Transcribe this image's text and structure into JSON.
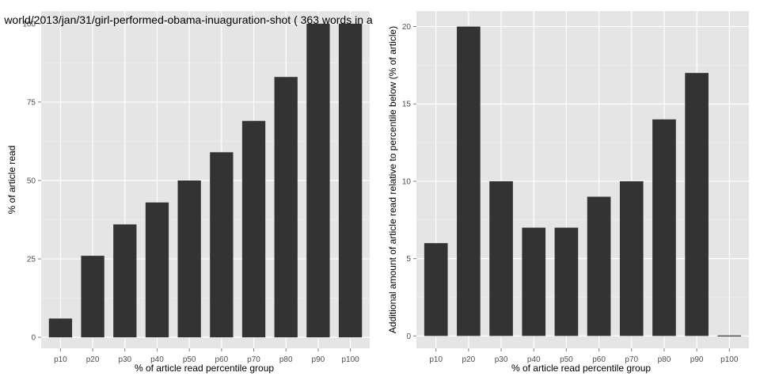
{
  "chart_data": [
    {
      "type": "bar",
      "title": "world/2013/jan/31/girl-performed-obama-inuaguration-shot ( 363 words in a",
      "xlabel": "% of article read percentile group",
      "ylabel": "% of article read",
      "categories": [
        "p10",
        "p20",
        "p30",
        "p40",
        "p50",
        "p60",
        "p70",
        "p80",
        "p90",
        "p100"
      ],
      "values": [
        6,
        26,
        36,
        43,
        50,
        59,
        69,
        83,
        100,
        100
      ],
      "ylim": [
        -3.5,
        104
      ],
      "yticks": [
        0,
        25,
        50,
        75,
        100
      ],
      "ytick_labels": [
        "0",
        "25",
        "50",
        "75",
        "100"
      ],
      "grid": true,
      "panel_color": "#e5e5e5",
      "bar_color": "#333333"
    },
    {
      "type": "bar",
      "title": "",
      "xlabel": "% of article read percentile group",
      "ylabel": "Additional amount of article read relative to percentile below (% of article)",
      "categories": [
        "p10",
        "p20",
        "p30",
        "p40",
        "p50",
        "p60",
        "p70",
        "p80",
        "p90",
        "p100"
      ],
      "values": [
        6,
        20,
        10,
        7,
        7,
        9,
        10,
        14,
        17,
        0
      ],
      "ylim": [
        -0.8,
        21
      ],
      "yticks": [
        0,
        5,
        10,
        15,
        20
      ],
      "ytick_labels": [
        "0",
        "5",
        "10",
        "15",
        "20"
      ],
      "grid": true,
      "panel_color": "#e5e5e5",
      "bar_color": "#333333"
    }
  ]
}
